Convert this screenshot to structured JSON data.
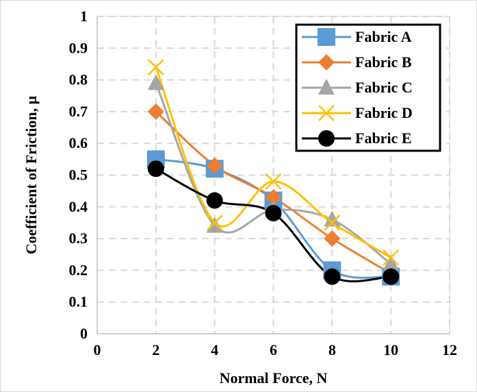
{
  "chart_data": {
    "type": "line",
    "title": "",
    "xlabel": "Normal Force, N",
    "ylabel": "Coefficient of Friction, μ",
    "xlim": [
      0,
      12
    ],
    "ylim": [
      0,
      1
    ],
    "xticks": [
      0,
      2,
      4,
      6,
      8,
      10,
      12
    ],
    "yticks": [
      0,
      0.1,
      0.2,
      0.3,
      0.4,
      0.5,
      0.6,
      0.7,
      0.8,
      0.9,
      1
    ],
    "ytick_labels": [
      "0",
      "0.1",
      "0.2",
      "0.3",
      "0.4",
      "0.5",
      "0.6",
      "0.7",
      "0.8",
      "0.9",
      "1"
    ],
    "grid": true,
    "smooth": true,
    "legend_position": "top-right",
    "x": [
      2,
      4,
      6,
      8,
      10
    ],
    "series": [
      {
        "name": "Fabric A",
        "values": [
          0.55,
          0.52,
          0.42,
          0.2,
          0.18
        ],
        "color": "#5b9bd5",
        "marker": "square"
      },
      {
        "name": "Fabric B",
        "values": [
          0.7,
          0.53,
          0.43,
          0.3,
          0.19
        ],
        "color": "#ed7d31",
        "marker": "diamond"
      },
      {
        "name": "Fabric C",
        "values": [
          0.79,
          0.34,
          0.39,
          0.36,
          0.22
        ],
        "color": "#a5a5a5",
        "marker": "triangle"
      },
      {
        "name": "Fabric D",
        "values": [
          0.84,
          0.35,
          0.48,
          0.35,
          0.24
        ],
        "color": "#ffc000",
        "marker": "x"
      },
      {
        "name": "Fabric E",
        "values": [
          0.52,
          0.42,
          0.38,
          0.18,
          0.18
        ],
        "color": "#000000",
        "marker": "circle"
      }
    ]
  }
}
